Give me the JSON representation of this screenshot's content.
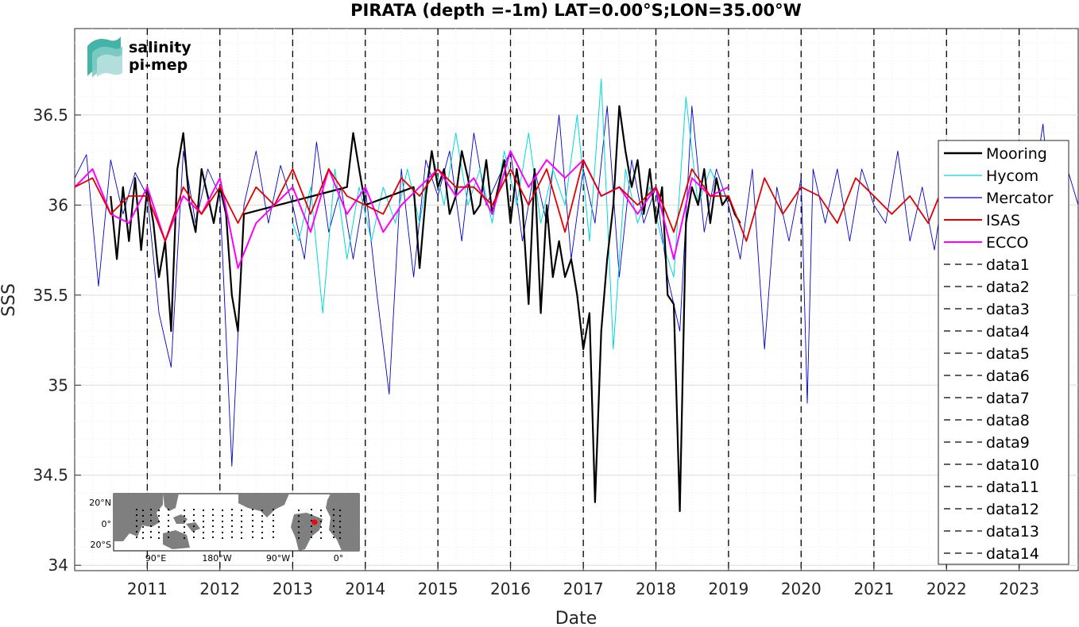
{
  "chart_data": {
    "type": "line",
    "title": "PIRATA (depth =-1m) LAT=0.00°S;LON=35.00°W",
    "xlabel": "Date",
    "ylabel": "SSS",
    "xlim": [
      "2010-01-01",
      "2023-10-25"
    ],
    "ylim": [
      33.97,
      36.98
    ],
    "x_ticks": [
      "2011",
      "2012",
      "2013",
      "2014",
      "2015",
      "2016",
      "2017",
      "2018",
      "2019",
      "2020",
      "2021",
      "2022",
      "2023"
    ],
    "y_ticks": [
      "34",
      "34.5",
      "35",
      "35.5",
      "36",
      "36.5"
    ],
    "grid": true,
    "legend_position": "right",
    "vertical_lines": [
      {
        "name": "data1",
        "x": "2011-01-01"
      },
      {
        "name": "data2",
        "x": "2012-01-01"
      },
      {
        "name": "data3",
        "x": "2013-01-01"
      },
      {
        "name": "data4",
        "x": "2014-01-01"
      },
      {
        "name": "data5",
        "x": "2015-01-01"
      },
      {
        "name": "data6",
        "x": "2016-01-01"
      },
      {
        "name": "data7",
        "x": "2017-01-01"
      },
      {
        "name": "data8",
        "x": "2018-01-01"
      },
      {
        "name": "data9",
        "x": "2019-01-01"
      },
      {
        "name": "data10",
        "x": "2020-01-01"
      },
      {
        "name": "data11",
        "x": "2021-01-01"
      },
      {
        "name": "data12",
        "x": "2022-01-01"
      },
      {
        "name": "data13",
        "x": "2023-01-01"
      },
      {
        "name": "data14",
        "x": "2023-01-01"
      }
    ],
    "series": [
      {
        "name": "Mercator",
        "color": "#0000cc",
        "x": [
          "2010-01-01",
          "2010-03-01",
          "2010-05-01",
          "2010-07-01",
          "2010-09-01",
          "2010-11-01",
          "2011-01-01",
          "2011-03-01",
          "2011-05-01",
          "2011-07-01",
          "2011-09-01",
          "2011-11-01",
          "2012-01-01",
          "2012-03-01",
          "2012-05-01",
          "2012-07-01",
          "2012-09-01",
          "2012-11-01",
          "2013-01-01",
          "2013-03-01",
          "2013-05-01",
          "2013-07-01",
          "2013-09-01",
          "2013-11-01",
          "2014-01-01",
          "2014-03-01",
          "2014-05-01",
          "2014-07-01",
          "2014-09-01",
          "2014-11-01",
          "2015-01-01",
          "2015-03-01",
          "2015-05-01",
          "2015-07-01",
          "2015-09-01",
          "2015-11-01",
          "2016-01-01",
          "2016-03-01",
          "2016-05-01",
          "2016-07-01",
          "2016-09-01",
          "2016-11-01",
          "2017-01-01",
          "2017-03-01",
          "2017-05-01",
          "2017-07-01",
          "2017-09-01",
          "2017-11-01",
          "2018-01-01",
          "2018-03-01",
          "2018-05-01",
          "2018-07-01",
          "2018-09-01",
          "2018-11-01",
          "2019-01-01",
          "2019-03-01",
          "2019-05-01",
          "2019-07-01",
          "2019-09-01",
          "2019-11-01",
          "2020-01-01",
          "2020-02-01",
          "2020-03-01",
          "2020-05-01",
          "2020-07-01",
          "2020-09-01",
          "2020-11-01",
          "2021-01-01",
          "2021-03-01",
          "2021-05-01",
          "2021-07-01",
          "2021-09-01",
          "2021-11-01",
          "2022-01-01",
          "2022-03-01",
          "2022-05-01",
          "2022-07-01",
          "2022-09-01",
          "2022-11-01",
          "2023-01-01",
          "2023-03-01",
          "2023-05-01",
          "2023-07-01",
          "2023-09-01",
          "2023-10-25"
        ],
        "y": [
          36.15,
          36.28,
          35.55,
          36.25,
          35.95,
          36.18,
          36.05,
          35.4,
          35.1,
          36.3,
          35.9,
          36.2,
          36.05,
          34.55,
          36.0,
          36.3,
          35.9,
          36.22,
          36.0,
          35.7,
          36.35,
          35.85,
          36.1,
          35.7,
          36.1,
          35.5,
          34.95,
          36.2,
          35.6,
          36.25,
          36.05,
          36.3,
          35.8,
          36.4,
          36.0,
          36.15,
          36.3,
          35.8,
          36.2,
          35.9,
          36.5,
          35.7,
          36.2,
          35.9,
          36.55,
          35.6,
          36.25,
          35.9,
          36.1,
          35.6,
          35.3,
          36.55,
          35.85,
          36.2,
          36.0,
          35.7,
          36.2,
          35.2,
          36.1,
          35.8,
          36.15,
          34.9,
          36.2,
          35.9,
          36.2,
          35.8,
          36.2,
          36.0,
          35.9,
          36.3,
          35.8,
          36.1,
          35.75,
          36.2,
          35.6,
          36.3,
          35.9,
          36.2,
          35.7,
          36.1,
          36.0,
          36.45,
          35.7,
          36.2,
          36.0
        ]
      },
      {
        "name": "Hycom",
        "color": "#00d8d8",
        "x": [
          "2013-01-01",
          "2013-02-01",
          "2013-04-01",
          "2013-06-01",
          "2013-08-01",
          "2013-10-01",
          "2013-12-01",
          "2014-02-01",
          "2014-04-01",
          "2014-06-01",
          "2014-08-01",
          "2014-10-01",
          "2014-12-01",
          "2015-02-01",
          "2015-04-01",
          "2015-06-01",
          "2015-08-01",
          "2015-10-01",
          "2015-12-01",
          "2016-02-01",
          "2016-04-01",
          "2016-06-01",
          "2016-08-01",
          "2016-10-01",
          "2016-12-01",
          "2017-02-01",
          "2017-04-01",
          "2017-06-01",
          "2017-08-01",
          "2017-10-01",
          "2017-12-01",
          "2018-02-01",
          "2018-04-01",
          "2018-06-01",
          "2018-08-01",
          "2018-10-01",
          "2018-12-01"
        ],
        "y": [
          35.9,
          35.8,
          36.1,
          35.4,
          36.2,
          35.7,
          36.1,
          35.8,
          36.1,
          35.9,
          36.2,
          35.9,
          36.3,
          36.0,
          36.4,
          36.0,
          36.2,
          35.9,
          36.3,
          36.0,
          36.4,
          35.9,
          36.2,
          36.0,
          36.5,
          35.8,
          36.7,
          35.2,
          36.2,
          35.9,
          36.1,
          35.8,
          35.6,
          36.6,
          36.0,
          36.2,
          36.05
        ]
      },
      {
        "name": "Mooring",
        "color": "#000000",
        "x": [
          "2010-07-01",
          "2010-08-01",
          "2010-09-01",
          "2010-10-01",
          "2010-11-01",
          "2010-12-01",
          "2011-01-01",
          "2011-02-01",
          "2011-03-01",
          "2011-04-01",
          "2011-05-01",
          "2011-06-01",
          "2011-07-01",
          "2011-08-01",
          "2011-09-01",
          "2011-10-01",
          "2011-11-01",
          "2011-12-01",
          "2012-01-01",
          "2012-02-01",
          "2012-03-01",
          "2012-04-01",
          "2012-05-01",
          "2013-10-01",
          "2013-11-01",
          "2013-12-01",
          "2014-01-01",
          "2014-09-01",
          "2014-10-01",
          "2014-11-01",
          "2014-12-01",
          "2015-01-01",
          "2015-02-01",
          "2015-03-01",
          "2015-04-01",
          "2015-05-01",
          "2015-06-01",
          "2015-07-01",
          "2015-08-01",
          "2015-09-01",
          "2015-10-01",
          "2015-11-01",
          "2015-12-01",
          "2016-01-01",
          "2016-02-01",
          "2016-03-01",
          "2016-04-01",
          "2016-05-01",
          "2016-06-01",
          "2016-07-01",
          "2016-08-01",
          "2016-09-01",
          "2016-10-01",
          "2016-11-01",
          "2016-12-01",
          "2017-01-01",
          "2017-02-01",
          "2017-03-01",
          "2017-04-01",
          "2017-05-01",
          "2017-06-01",
          "2017-07-01",
          "2017-08-01",
          "2017-09-01",
          "2017-10-01",
          "2017-11-01",
          "2017-12-01",
          "2018-01-01",
          "2018-02-01",
          "2018-03-01",
          "2018-04-01",
          "2018-05-01",
          "2018-06-01",
          "2018-07-01",
          "2018-08-01",
          "2018-09-01",
          "2018-10-01",
          "2018-11-01",
          "2018-12-01",
          "2019-01-01",
          "2019-02-01",
          "2019-03-01"
        ],
        "y": [
          36.05,
          35.7,
          36.1,
          35.8,
          36.15,
          35.75,
          36.1,
          35.9,
          35.6,
          35.8,
          35.3,
          36.2,
          36.4,
          36.0,
          35.85,
          36.2,
          36.05,
          35.9,
          36.1,
          35.95,
          35.5,
          35.3,
          35.95,
          36.1,
          36.4,
          36.2,
          36.0,
          36.1,
          35.65,
          36.05,
          36.3,
          36.1,
          36.2,
          35.95,
          36.05,
          36.3,
          36.15,
          35.95,
          36.0,
          36.25,
          35.95,
          36.1,
          36.25,
          35.9,
          36.2,
          36.0,
          35.45,
          36.2,
          35.4,
          36.0,
          35.6,
          35.8,
          35.6,
          35.7,
          35.5,
          35.2,
          35.4,
          34.35,
          35.3,
          35.7,
          36.0,
          36.55,
          36.3,
          36.1,
          36.25,
          35.95,
          36.2,
          35.9,
          36.1,
          35.5,
          35.45,
          34.3,
          35.9,
          36.1,
          36.0,
          36.2,
          35.9,
          36.15,
          36.0,
          36.05,
          35.95,
          35.9
        ]
      },
      {
        "name": "ECCO",
        "color": "#ff00ff",
        "x": [
          "2010-01-01",
          "2010-04-01",
          "2010-07-01",
          "2010-10-01",
          "2011-01-01",
          "2011-04-01",
          "2011-07-01",
          "2011-10-01",
          "2012-01-01",
          "2012-04-01",
          "2012-07-01",
          "2012-10-01",
          "2013-01-01",
          "2013-04-01",
          "2013-07-01",
          "2013-10-01",
          "2014-01-01",
          "2014-04-01",
          "2014-07-01",
          "2014-10-01",
          "2015-01-01",
          "2015-04-01",
          "2015-07-01",
          "2015-10-01",
          "2016-01-01",
          "2016-04-01",
          "2016-07-01",
          "2016-10-01",
          "2017-01-01",
          "2017-04-01",
          "2017-07-01",
          "2017-10-01",
          "2018-01-01",
          "2018-04-01",
          "2018-07-01",
          "2018-10-01",
          "2019-01-01"
        ],
        "y": [
          36.1,
          36.2,
          35.95,
          35.9,
          36.1,
          35.8,
          36.05,
          35.95,
          36.15,
          35.65,
          35.9,
          36.0,
          36.1,
          35.85,
          36.2,
          35.95,
          36.1,
          35.85,
          36.0,
          36.1,
          36.2,
          36.05,
          36.15,
          35.95,
          36.3,
          36.1,
          36.25,
          36.15,
          36.25,
          36.05,
          36.1,
          35.95,
          36.1,
          35.7,
          36.15,
          36.05,
          36.1
        ]
      },
      {
        "name": "ISAS",
        "color": "#e00000",
        "x": [
          "2010-01-01",
          "2010-04-01",
          "2010-07-01",
          "2010-10-01",
          "2011-01-01",
          "2011-04-01",
          "2011-07-01",
          "2011-10-01",
          "2012-01-01",
          "2012-04-01",
          "2012-07-01",
          "2012-10-01",
          "2013-01-01",
          "2013-04-01",
          "2013-07-01",
          "2013-10-01",
          "2014-01-01",
          "2014-04-01",
          "2014-07-01",
          "2014-10-01",
          "2015-01-01",
          "2015-04-01",
          "2015-07-01",
          "2015-10-01",
          "2016-01-01",
          "2016-04-01",
          "2016-07-01",
          "2016-10-01",
          "2017-01-01",
          "2017-04-01",
          "2017-07-01",
          "2017-10-01",
          "2018-01-01",
          "2018-04-01",
          "2018-07-01",
          "2018-10-01",
          "2019-01-01",
          "2019-04-01",
          "2019-07-01",
          "2019-10-01",
          "2020-01-01",
          "2020-04-01",
          "2020-07-01",
          "2020-10-01",
          "2021-01-01",
          "2021-04-01",
          "2021-07-01",
          "2021-10-01",
          "2022-01-01"
        ],
        "y": [
          36.1,
          36.15,
          35.95,
          36.05,
          36.05,
          35.8,
          36.1,
          35.95,
          36.1,
          35.9,
          36.1,
          36.0,
          36.2,
          35.95,
          36.2,
          36.05,
          36.0,
          35.95,
          36.15,
          36.05,
          36.2,
          36.1,
          36.1,
          36.0,
          36.2,
          36.0,
          36.2,
          35.85,
          36.25,
          36.05,
          36.1,
          36.0,
          36.1,
          35.85,
          36.2,
          36.05,
          36.05,
          35.8,
          36.15,
          35.95,
          36.1,
          36.05,
          35.9,
          36.15,
          36.05,
          35.95,
          36.05,
          35.9,
          36.15
        ]
      }
    ],
    "legend": [
      "Mooring",
      "Hycom",
      "Mercator",
      "ISAS",
      "ECCO",
      "data1",
      "data2",
      "data3",
      "data4",
      "data5",
      "data6",
      "data7",
      "data8",
      "data9",
      "data10",
      "data11",
      "data12",
      "data13",
      "data14"
    ],
    "logo": {
      "line1": "salinity",
      "line2": "pi-mep",
      "color1": "#1fa99b",
      "color2": "#1b6e66"
    },
    "inset_map": {
      "lat_labels": [
        "20°N",
        "0°",
        "20°S"
      ],
      "lon_labels": [
        "90°E",
        "180°W",
        "90°W",
        "0°"
      ],
      "marker_color": "#ff0000"
    }
  }
}
